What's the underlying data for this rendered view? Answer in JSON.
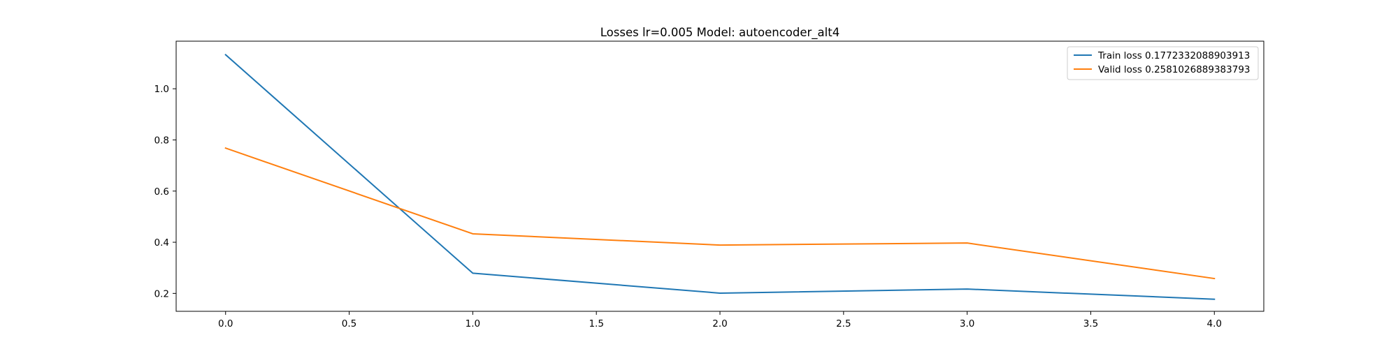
{
  "chart_data": {
    "type": "line",
    "title": "Losses lr=0.005 Model: autoencoder_alt4",
    "xlabel": "",
    "ylabel": "",
    "x": [
      0,
      1,
      2,
      3,
      4
    ],
    "xlim": [
      -0.2,
      4.2
    ],
    "ylim": [
      0.13,
      1.186
    ],
    "xticks": [
      0.0,
      0.5,
      1.0,
      1.5,
      2.0,
      2.5,
      3.0,
      3.5,
      4.0
    ],
    "xtick_labels": [
      "0.0",
      "0.5",
      "1.0",
      "1.5",
      "2.0",
      "2.5",
      "3.0",
      "3.5",
      "4.0"
    ],
    "yticks": [
      0.2,
      0.4,
      0.6,
      0.8,
      1.0
    ],
    "ytick_labels": [
      "0.2",
      "0.4",
      "0.6",
      "0.8",
      "1.0"
    ],
    "grid": false,
    "legend_position": "top-right",
    "series": [
      {
        "name": "Train loss 0.1772332088903913",
        "color": "#1f77b4",
        "values": [
          1.133,
          0.279,
          0.201,
          0.217,
          0.1772332088903913
        ]
      },
      {
        "name": "Valid loss 0.2581026889383793",
        "color": "#ff7f0e",
        "values": [
          0.768,
          0.433,
          0.389,
          0.397,
          0.2581026889383793
        ]
      }
    ]
  }
}
